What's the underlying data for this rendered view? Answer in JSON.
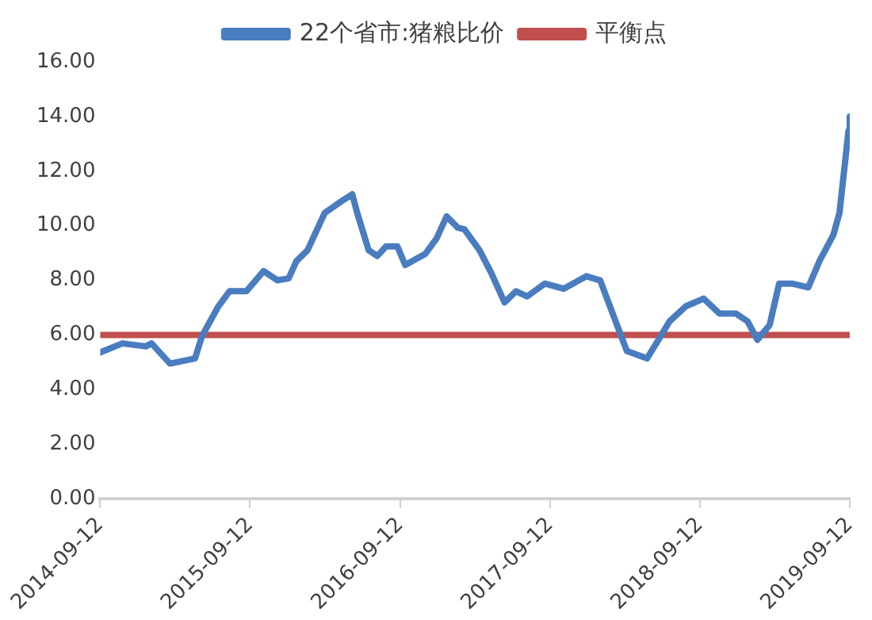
{
  "chart_data": {
    "type": "line",
    "legend": "top",
    "grid": false,
    "xlim": [
      "2014-09-12",
      "2019-09-12"
    ],
    "xticks": [
      "2014-09-12",
      "2015-09-12",
      "2016-09-12",
      "2017-09-12",
      "2018-09-12",
      "2019-09-12"
    ],
    "ylim": [
      0,
      16
    ],
    "yticks": [
      {
        "value": 0,
        "label": "0.00"
      },
      {
        "value": 2,
        "label": "2.00"
      },
      {
        "value": 4,
        "label": "4.00"
      },
      {
        "value": 6,
        "label": "6.00"
      },
      {
        "value": 8,
        "label": "8.00"
      },
      {
        "value": 10,
        "label": "10.00"
      },
      {
        "value": 12,
        "label": "12.00"
      },
      {
        "value": 14,
        "label": "14.00"
      },
      {
        "value": 16,
        "label": "16.00"
      }
    ],
    "series": [
      {
        "name": "22个省市:猪粮比价",
        "color": "#4a7cc0",
        "x": [
          "2014-09-12",
          "2014-11-05",
          "2015-01-01",
          "2015-01-15",
          "2015-03-01",
          "2015-05-01",
          "2015-05-18",
          "2015-06-27",
          "2015-07-24",
          "2015-09-03",
          "2015-10-15",
          "2015-11-18",
          "2015-12-15",
          "2016-01-03",
          "2016-01-30",
          "2016-03-12",
          "2016-04-20",
          "2016-05-18",
          "2016-05-30",
          "2016-06-27",
          "2016-07-18",
          "2016-08-08",
          "2016-09-05",
          "2016-09-24",
          "2016-11-12",
          "2016-12-09",
          "2017-01-03",
          "2017-01-30",
          "2017-02-15",
          "2017-03-24",
          "2017-04-21",
          "2017-05-24",
          "2017-06-21",
          "2017-07-18",
          "2017-08-30",
          "2017-10-15",
          "2017-12-09",
          "2018-01-12",
          "2018-02-15",
          "2018-03-18",
          "2018-05-06",
          "2018-06-03",
          "2018-06-30",
          "2018-08-09",
          "2018-09-21",
          "2018-10-30",
          "2018-12-09",
          "2019-01-06",
          "2019-01-30",
          "2019-03-01",
          "2019-03-24",
          "2019-04-24",
          "2019-06-03",
          "2019-06-30",
          "2019-08-03",
          "2019-08-18",
          "2019-09-09",
          "2019-09-12"
        ],
        "values": [
          5.36,
          5.69,
          5.58,
          5.69,
          4.95,
          5.14,
          5.96,
          7.05,
          7.6,
          7.6,
          8.34,
          8.0,
          8.07,
          8.7,
          9.1,
          10.47,
          10.88,
          11.15,
          10.47,
          9.1,
          8.89,
          9.24,
          9.24,
          8.56,
          8.97,
          9.52,
          10.34,
          9.93,
          9.87,
          9.1,
          8.29,
          7.19,
          7.6,
          7.41,
          7.88,
          7.69,
          8.15,
          8.0,
          6.64,
          5.41,
          5.14,
          5.82,
          6.5,
          7.05,
          7.33,
          6.78,
          6.78,
          6.5,
          5.82,
          6.37,
          7.88,
          7.88,
          7.74,
          8.7,
          9.66,
          10.47,
          13.48,
          14.0
        ]
      },
      {
        "name": "平衡点",
        "color": "#c0504d",
        "x": [
          "2014-09-12",
          "2019-09-12"
        ],
        "values": [
          6.0,
          6.0
        ]
      }
    ]
  }
}
